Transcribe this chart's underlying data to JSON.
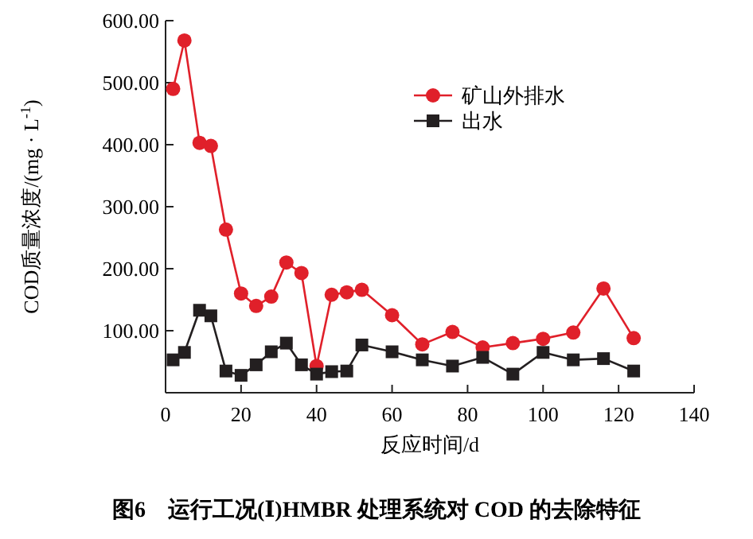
{
  "chart_data": {
    "type": "line",
    "title": "图6　运行工况(Ⅰ)HMBR 处理系统对 COD 的去除特征",
    "xlabel": "反应时间/d",
    "ylabel": "COD质量浓度/(mg · L$^{-1}$)",
    "x": [
      2,
      5,
      9,
      12,
      16,
      20,
      24,
      28,
      32,
      36,
      40,
      44,
      48,
      52,
      60,
      68,
      76,
      84,
      92,
      100,
      108,
      116,
      124
    ],
    "series": [
      {
        "name": "矿山外排水",
        "color": "#e0202a",
        "marker": "circle",
        "values": [
          490,
          568,
          403,
          398,
          263,
          160,
          140,
          155,
          210,
          193,
          43,
          158,
          162,
          166,
          125,
          78,
          98,
          73,
          80,
          87,
          97,
          168,
          88
        ]
      },
      {
        "name": "出水",
        "color": "#231f20",
        "marker": "square",
        "values": [
          53,
          65,
          133,
          124,
          35,
          28,
          45,
          66,
          80,
          45,
          30,
          34,
          35,
          77,
          66,
          53,
          43,
          57,
          30,
          65,
          53,
          55,
          35
        ]
      }
    ],
    "xlim": [
      0,
      140
    ],
    "xticks": [
      0,
      20,
      40,
      60,
      80,
      100,
      120,
      140
    ],
    "ylim": [
      0,
      600
    ],
    "yticks": [
      {
        "value": 100,
        "label": "100.00"
      },
      {
        "value": 200,
        "label": "200.00"
      },
      {
        "value": 300,
        "label": "300.00"
      },
      {
        "value": 400,
        "label": "400.00"
      },
      {
        "value": 500,
        "label": "500.00"
      },
      {
        "value": 600,
        "label": "600.00"
      }
    ],
    "legend": "top right",
    "grid": false
  }
}
